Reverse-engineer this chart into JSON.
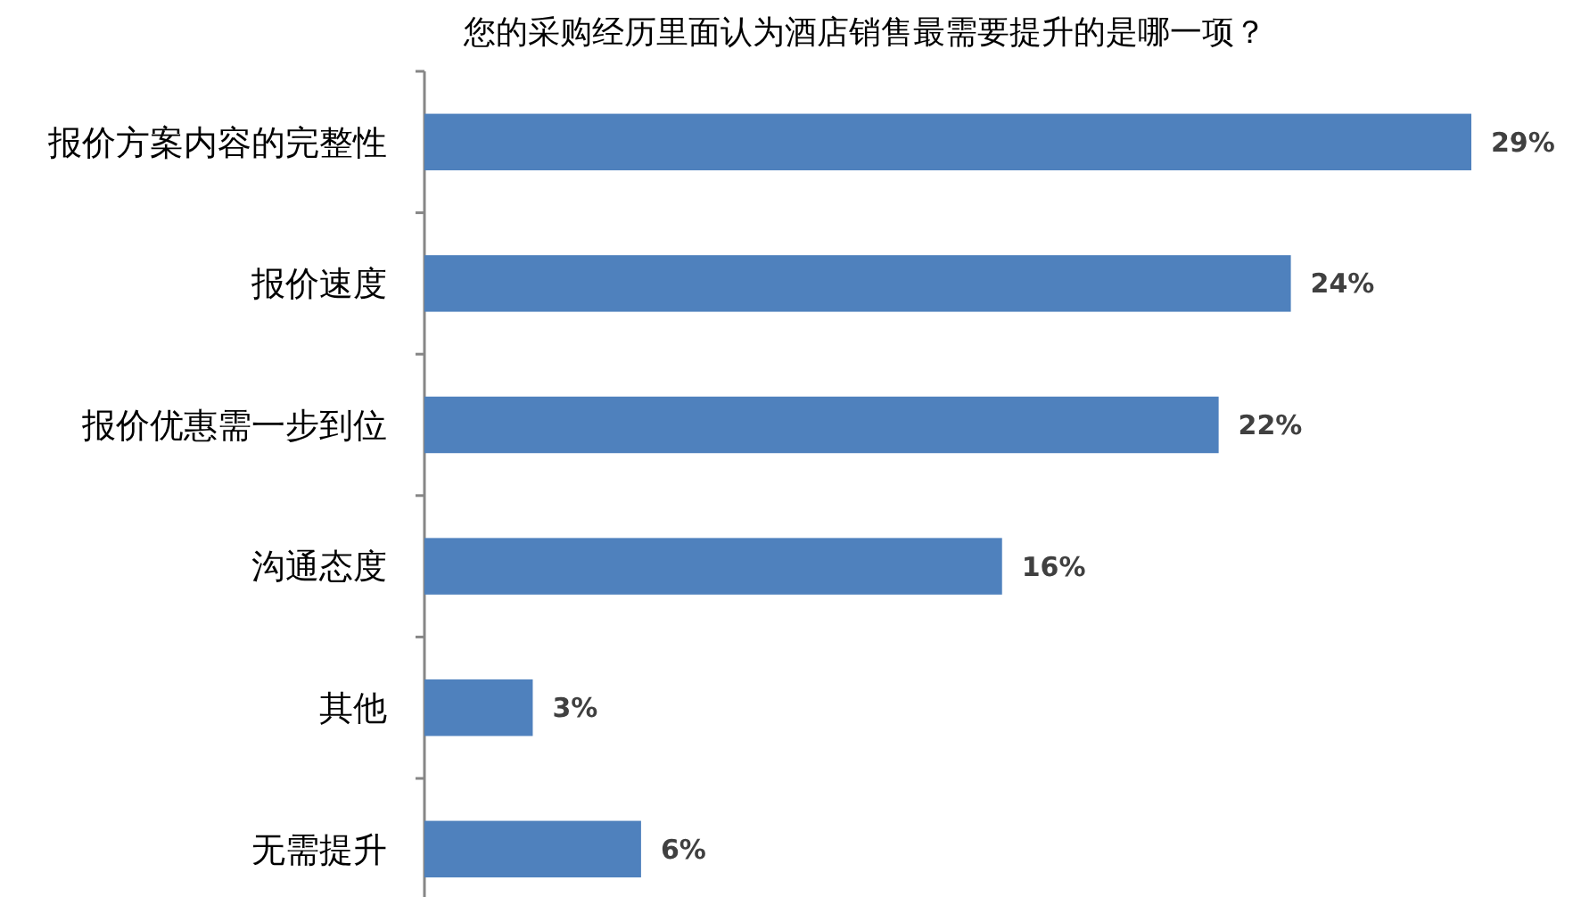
{
  "chart_data": {
    "type": "bar",
    "orientation": "horizontal",
    "title": "您的采购经历里面认为酒店销售最需要提升的是哪一项？",
    "categories": [
      "报价方案内容的完整性",
      "报价速度",
      "报价优惠需一步到位",
      "沟通态度",
      "其他",
      "无需提升"
    ],
    "values": [
      29,
      24,
      22,
      16,
      3,
      6
    ],
    "color": "#4f81bd",
    "value_labels": [
      "29%",
      "24%",
      "22%",
      "16%",
      "3%",
      "6%"
    ]
  }
}
